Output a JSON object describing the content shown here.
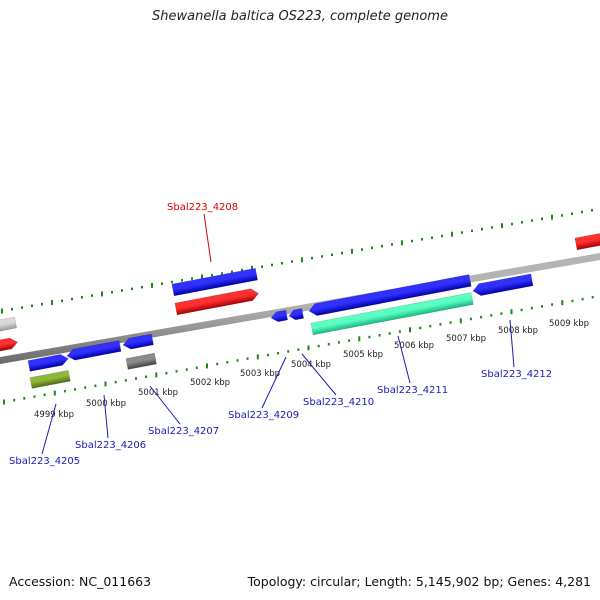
{
  "title": "Shewanella baltica OS223, complete genome",
  "footer": {
    "accession": "Accession: NC_011663",
    "summary": "Topology: circular; Length: 5,145,902 bp; Genes: 4,281"
  },
  "colors": {
    "forward_cds": "#1414ee",
    "reverse_cds": "#ee1414",
    "rna": "#33eea8",
    "pseudo": "#707070",
    "other": "#6e8f1e",
    "highlight_label": "#dd0000",
    "label": "#1a1ab4",
    "tick": "#1a8a1a",
    "backbone": "#8c8c8c"
  },
  "scale": {
    "labels": [
      "4999 kbp",
      "5000 kbp",
      "5001 kbp",
      "5002 kbp",
      "5003 kbp",
      "5004 kbp",
      "5005 kbp",
      "5006 kbp",
      "5007 kbp",
      "5008 kbp",
      "5009 kbp"
    ]
  },
  "gene_labels": [
    {
      "id": "Sbal223_4208",
      "text": "Sbal223_4208",
      "highlight": true
    },
    {
      "id": "Sbal223_4205",
      "text": "Sbal223_4205",
      "highlight": false
    },
    {
      "id": "Sbal223_4206",
      "text": "Sbal223_4206",
      "highlight": false
    },
    {
      "id": "Sbal223_4207",
      "text": "Sbal223_4207",
      "highlight": false
    },
    {
      "id": "Sbal223_4209",
      "text": "Sbal223_4209",
      "highlight": false
    },
    {
      "id": "Sbal223_4210",
      "text": "Sbal223_4210",
      "highlight": false
    },
    {
      "id": "Sbal223_4211",
      "text": "Sbal223_4211",
      "highlight": false
    },
    {
      "id": "Sbal223_4212",
      "text": "Sbal223_4212",
      "highlight": false
    }
  ]
}
